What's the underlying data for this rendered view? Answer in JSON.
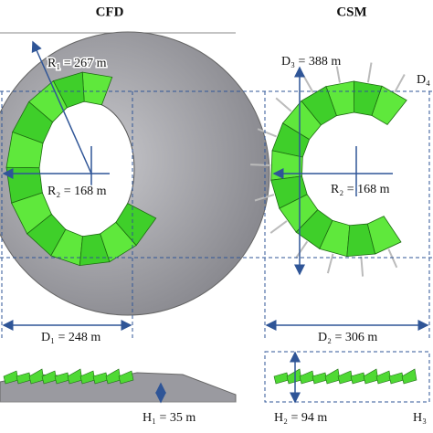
{
  "titles": {
    "left": "CFD",
    "right": "CSM"
  },
  "labels": {
    "r1": "R₁ = 267 m",
    "r2_left": "R₂ = 168 m",
    "d3": "D₃ = 388 m",
    "d4": "D₄",
    "r2_right": "R₂ = 168 m",
    "d1": "D₁ = 248 m",
    "d2": "D₂ = 306 m",
    "h1": "H₁ = 35 m",
    "h2": "H₂ = 94 m",
    "h3": "H₃"
  }
}
